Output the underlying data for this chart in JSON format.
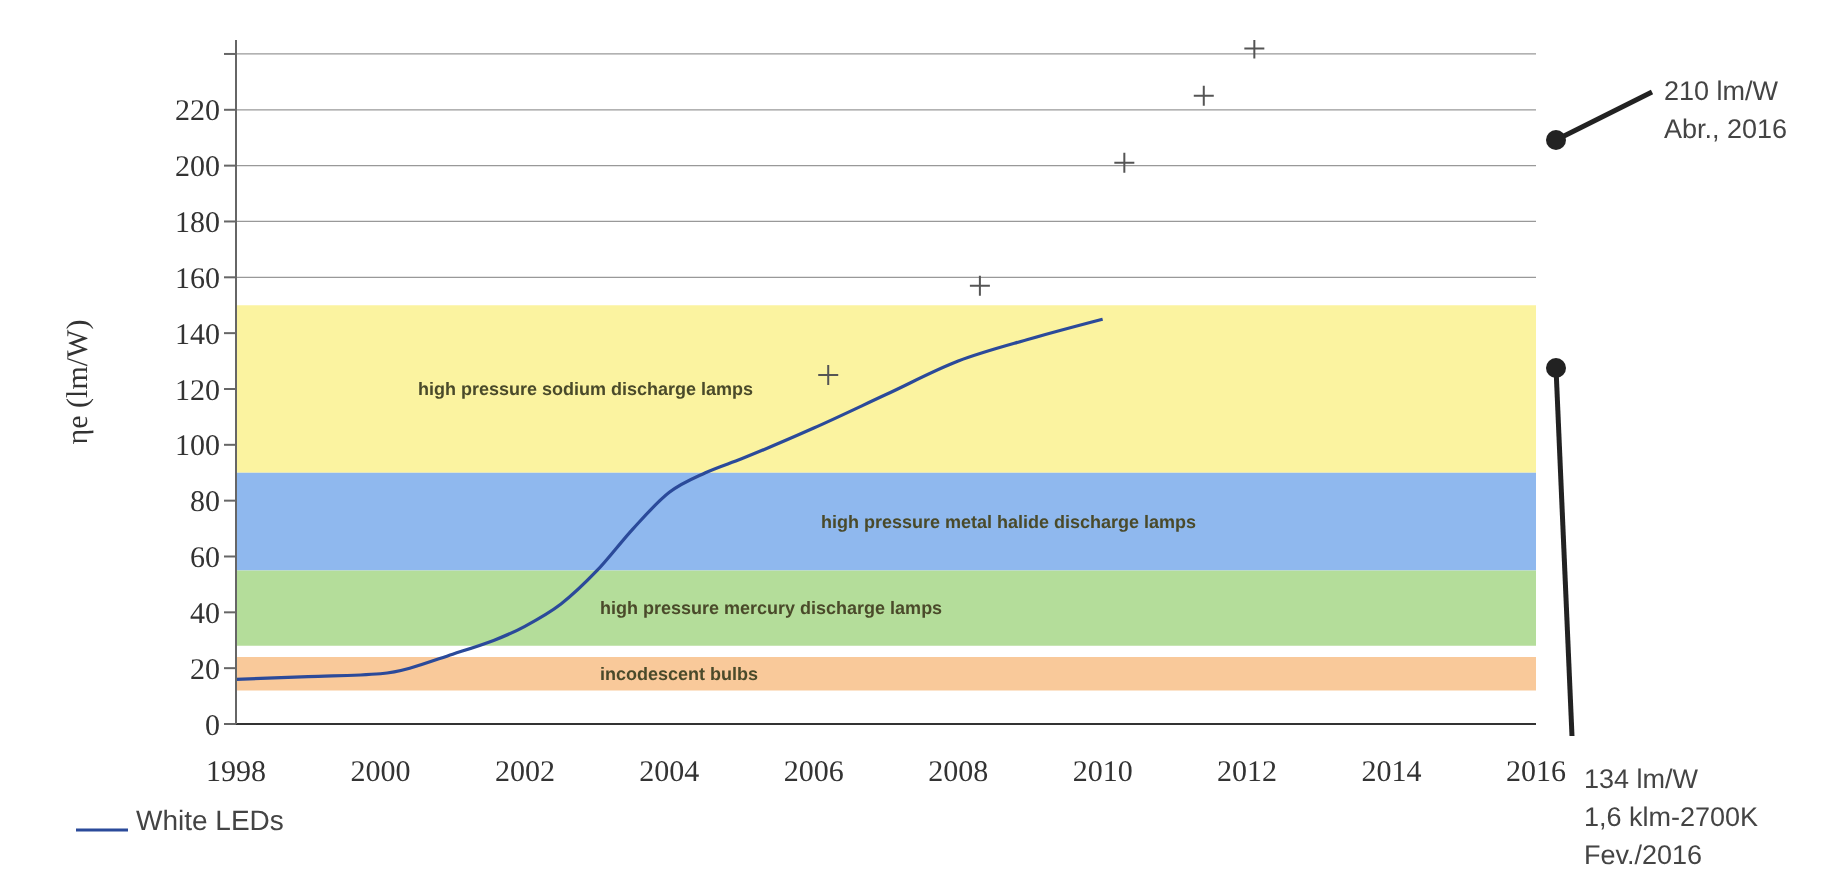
{
  "chart_data": {
    "type": "line",
    "ylabel": "ηe (lm/W)",
    "xlim": [
      1998,
      2016
    ],
    "xticks": [
      1998,
      2000,
      2002,
      2004,
      2006,
      2008,
      2010,
      2012,
      2014,
      2016
    ],
    "ylim": [
      0,
      245
    ],
    "yticks": [
      0,
      20,
      40,
      60,
      80,
      100,
      120,
      140,
      160,
      180,
      200,
      220,
      {
        "value": 240,
        "label": null
      }
    ],
    "grid": "y",
    "legend": "bottom left",
    "series": [
      {
        "name": "White LEDs",
        "marker": "none",
        "line_style": "solid",
        "color": "#2b4a9a",
        "x": [
          1998,
          1999,
          2000,
          2001,
          2002,
          2002.5,
          2003,
          2003.5,
          2004,
          2004.5,
          2005,
          2006,
          2007,
          2008,
          2009,
          2010
        ],
        "values": [
          16,
          17,
          18,
          25,
          35,
          43,
          55,
          70,
          83,
          90,
          95,
          106,
          118,
          130,
          138,
          145
        ]
      },
      {
        "type": "scatter",
        "marker": "cross",
        "color": "#555555",
        "x": [
          2006.2,
          2008.3,
          2010.3,
          2011.4,
          2012.1
        ],
        "values": [
          125,
          157,
          201,
          225,
          242
        ]
      }
    ],
    "bands": [
      {
        "axis": "y",
        "from": 90,
        "to": 150,
        "label": "high pressure sodium discharge lamps",
        "color": "#fbf3a0"
      },
      {
        "axis": "y",
        "from": 55,
        "to": 90,
        "label": "high pressure metal halide discharge lamps",
        "color": "#8fb8ee"
      },
      {
        "axis": "y",
        "from": 28,
        "to": 55,
        "label": "high pressure mercury discharge lamps",
        "color": "#b4dd9a"
      },
      {
        "axis": "y",
        "from": 12,
        "to": 24,
        "label": "incodescent bulbs",
        "color": "#f9c99a"
      }
    ],
    "annotations": [
      "210 lm/W\nAbr., 2016",
      "134 lm/W\n1,6 klm-2700K\nFev./2016"
    ]
  }
}
